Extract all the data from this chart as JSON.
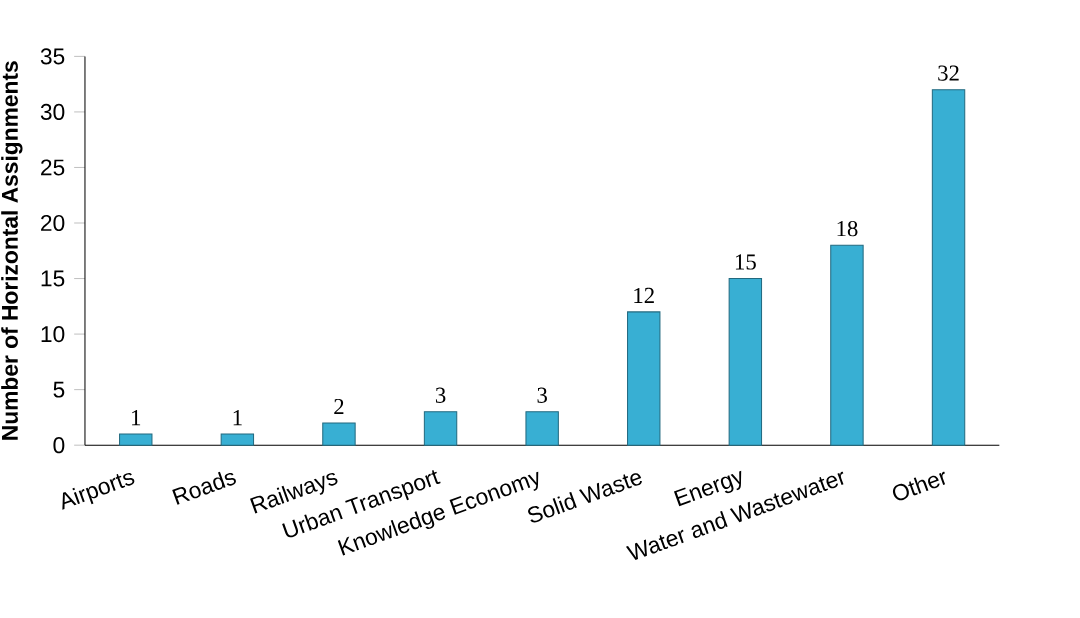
{
  "chart_data": {
    "type": "bar",
    "ylabel": "Number of Horizontal Assignments",
    "categories": [
      "Airports",
      "Roads",
      "Railways",
      "Urban Transport",
      "Knowledge Economy",
      "Solid Waste",
      "Energy",
      "Water and Wastewater",
      "Other"
    ],
    "values": [
      1,
      1,
      2,
      3,
      3,
      12,
      15,
      18,
      32
    ],
    "color": "#38afd3",
    "ylim": [
      0,
      35
    ],
    "yticks": [
      0,
      5,
      10,
      15,
      20,
      25,
      30,
      35
    ],
    "grid": false,
    "data_labels": true
  }
}
